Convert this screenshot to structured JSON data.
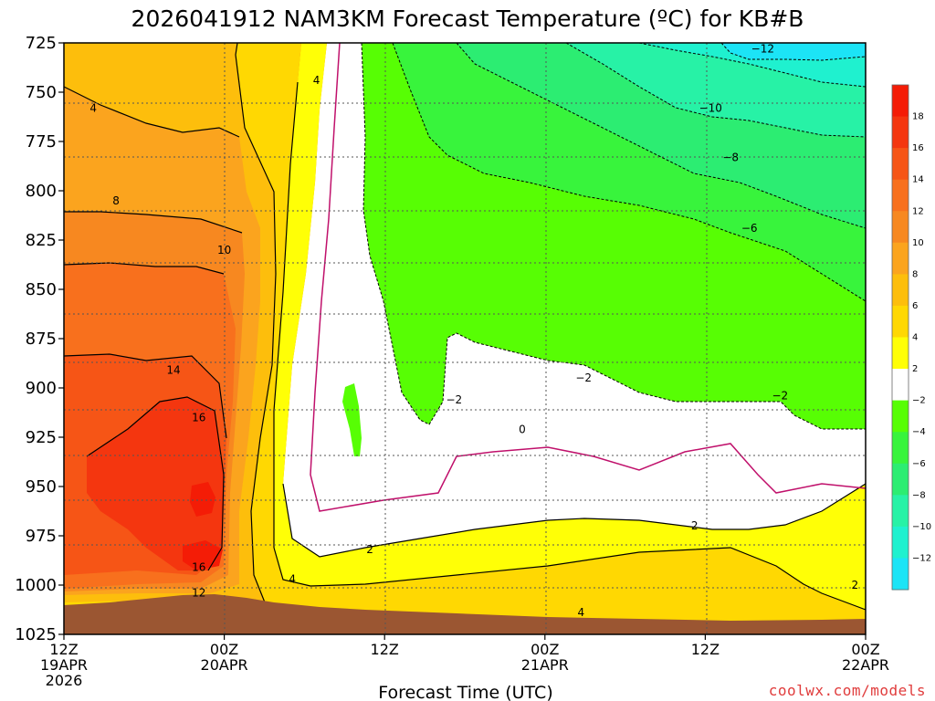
{
  "chart_data": {
    "type": "heatmap",
    "title": "2026041912 NAM3KM Forecast Temperature (ºC) for KB#B",
    "xlabel": "Forecast Time (UTC)",
    "ylabel": "",
    "credit": "coolwx.com/models",
    "x_range_hours": [
      0,
      60
    ],
    "y_range_hpa": [
      725,
      1025
    ],
    "yticks": [
      725,
      750,
      775,
      800,
      825,
      850,
      875,
      900,
      925,
      950,
      975,
      1000,
      1025
    ],
    "ytick_labels": [
      "725",
      "750",
      "775",
      "800",
      "825",
      "850",
      "875",
      "900",
      "925",
      "950",
      "975",
      "1000",
      "1025"
    ],
    "xticks": [
      {
        "hour": 0,
        "line1": "12Z",
        "line2": "19APR",
        "line3": "2026"
      },
      {
        "hour": 12,
        "line1": "00Z",
        "line2": "20APR",
        "line3": ""
      },
      {
        "hour": 24,
        "line1": "12Z",
        "line2": "",
        "line3": ""
      },
      {
        "hour": 36,
        "line1": "00Z",
        "line2": "21APR",
        "line3": ""
      },
      {
        "hour": 48,
        "line1": "12Z",
        "line2": "",
        "line3": ""
      },
      {
        "hour": 60,
        "line1": "00Z",
        "line2": "22APR",
        "line3": ""
      }
    ],
    "colorbar": {
      "labels": [
        "18",
        "16",
        "14",
        "12",
        "10",
        "8",
        "6",
        "4",
        "2",
        "−2",
        "−4",
        "−6",
        "−8",
        "−10",
        "−12"
      ],
      "bands": [
        {
          "min": 18,
          "max": 20,
          "color": "#f41c06"
        },
        {
          "min": 16,
          "max": 18,
          "color": "#f4360f"
        },
        {
          "min": 14,
          "max": 16,
          "color": "#f65516"
        },
        {
          "min": 12,
          "max": 14,
          "color": "#f8701d"
        },
        {
          "min": 10,
          "max": 12,
          "color": "#f78820"
        },
        {
          "min": 8,
          "max": 10,
          "color": "#fba41e"
        },
        {
          "min": 6,
          "max": 8,
          "color": "#fdbe0c"
        },
        {
          "min": 4,
          "max": 6,
          "color": "#ffd802"
        },
        {
          "min": 2,
          "max": 4,
          "color": "#ffff06"
        },
        {
          "min": -2,
          "max": 2,
          "color": "#ffffff"
        },
        {
          "min": -4,
          "max": -2,
          "color": "#57fe04"
        },
        {
          "min": -6,
          "max": -4,
          "color": "#38f43c"
        },
        {
          "min": -8,
          "max": -6,
          "color": "#2ced72"
        },
        {
          "min": -10,
          "max": -8,
          "color": "#27f2a6"
        },
        {
          "min": -12,
          "max": -10,
          "color": "#1ff1cf"
        },
        {
          "min": -14,
          "max": -12,
          "color": "#1ce4f6"
        }
      ]
    },
    "ground_color": "#9b5632",
    "contour_labels": [
      {
        "text": "4",
        "hour": 2.2,
        "p": 758
      },
      {
        "text": "4",
        "hour": 18.9,
        "p": 744
      },
      {
        "text": "8",
        "hour": 3.9,
        "p": 805
      },
      {
        "text": "10",
        "hour": 12,
        "p": 830
      },
      {
        "text": "14",
        "hour": 8.2,
        "p": 891
      },
      {
        "text": "16",
        "hour": 10.1,
        "p": 915
      },
      {
        "text": "16",
        "hour": 10.1,
        "p": 991
      },
      {
        "text": "12",
        "hour": 10.1,
        "p": 1004
      },
      {
        "text": "4",
        "hour": 17.1,
        "p": 997
      },
      {
        "text": "2",
        "hour": 22.9,
        "p": 982
      },
      {
        "text": "4",
        "hour": 38.7,
        "p": 1014
      },
      {
        "text": "2",
        "hour": 47.2,
        "p": 970
      },
      {
        "text": "2",
        "hour": 59.2,
        "p": 1000
      },
      {
        "text": "0",
        "hour": 34.3,
        "p": 921
      },
      {
        "text": "−2",
        "hour": 29.2,
        "p": 906
      },
      {
        "text": "−2",
        "hour": 38.9,
        "p": 895
      },
      {
        "text": "−2",
        "hour": 53.6,
        "p": 904
      },
      {
        "text": "−6",
        "hour": 51.3,
        "p": 819
      },
      {
        "text": "−8",
        "hour": 49.9,
        "p": 783
      },
      {
        "text": "−10",
        "hour": 48.4,
        "p": 758
      },
      {
        "text": "−12",
        "hour": 52.3,
        "p": 728
      }
    ]
  }
}
